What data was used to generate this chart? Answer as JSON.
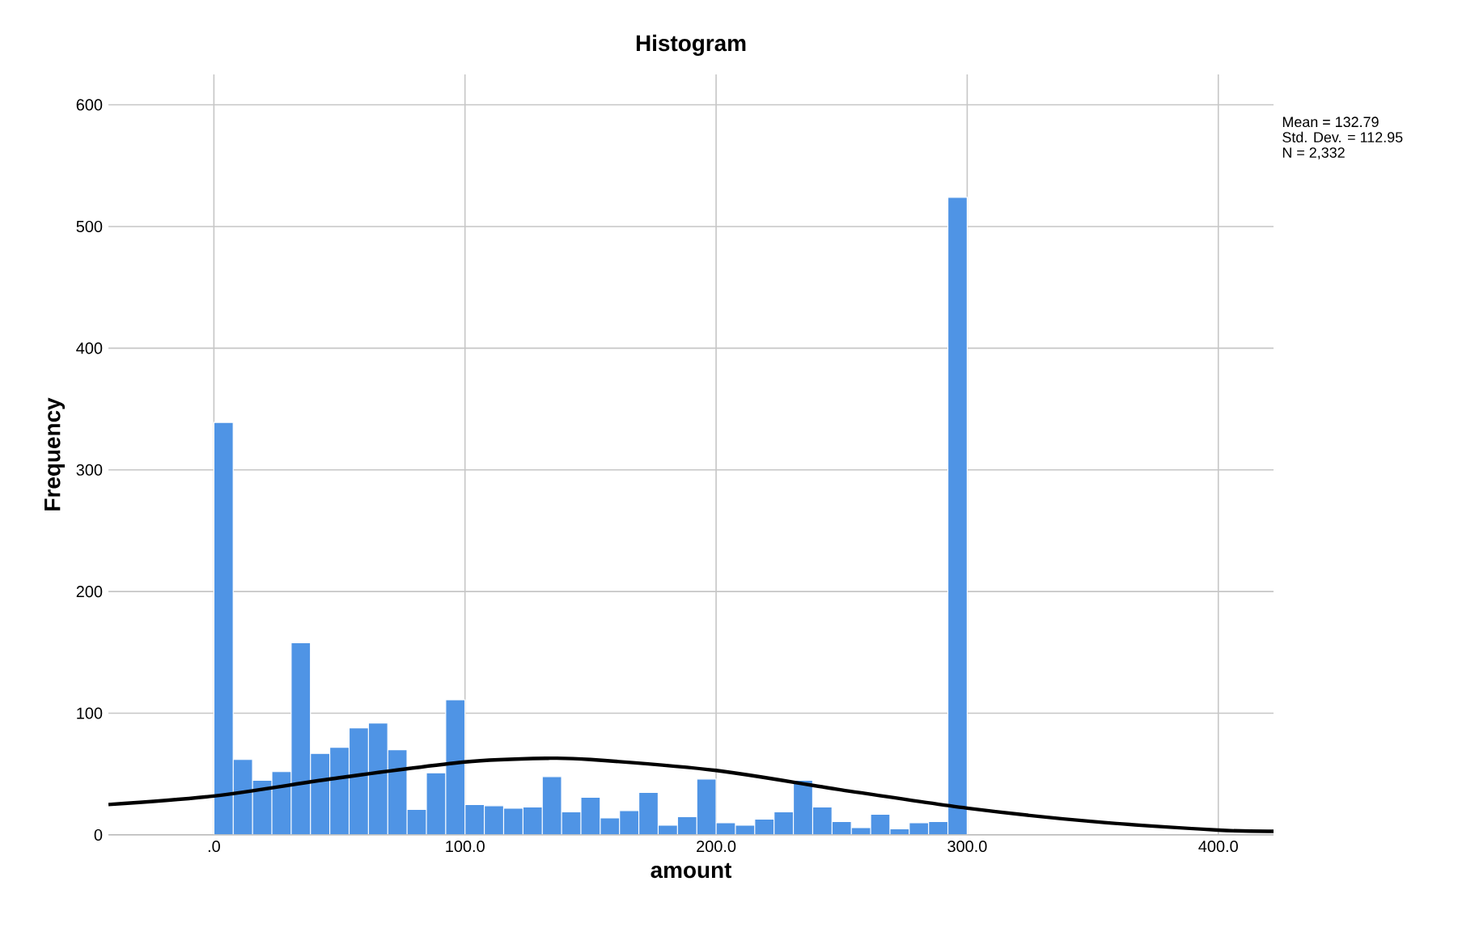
{
  "chart_data": {
    "type": "histogram",
    "title": "Histogram",
    "xlabel": "amount",
    "ylabel": "Frequency",
    "bins": [
      0,
      7.69,
      15.38,
      23.08,
      30.77,
      38.46,
      46.15,
      53.85,
      61.54,
      69.23,
      76.92,
      84.62,
      92.31,
      100,
      107.69,
      115.38,
      123.08,
      130.77,
      138.46,
      146.15,
      153.85,
      161.54,
      169.23,
      176.92,
      184.62,
      192.31,
      200,
      207.69,
      215.38,
      223.08,
      230.77,
      238.46,
      246.15,
      253.85,
      261.54,
      269.23,
      276.92,
      284.62,
      292.31,
      300
    ],
    "values": [
      339,
      62,
      45,
      52,
      158,
      67,
      72,
      88,
      92,
      70,
      21,
      51,
      111,
      25,
      24,
      22,
      23,
      48,
      19,
      31,
      14,
      20,
      35,
      8,
      15,
      46,
      10,
      8,
      13,
      19,
      45,
      23,
      11,
      6,
      17,
      5,
      10,
      11,
      524
    ],
    "color": "#4f94e5",
    "series": [
      {
        "type": "line",
        "color": "#000000",
        "x": [
          -42,
          0,
          50,
          100,
          133,
          150,
          200,
          250,
          300,
          350,
          400,
          422
        ],
        "values": [
          25,
          32,
          47,
          60,
          63,
          62,
          53,
          37,
          22,
          11,
          4,
          3
        ]
      }
    ],
    "xlim": [
      -42,
      422
    ],
    "ylim": [
      0,
      625
    ],
    "xticks": [
      {
        "value": 0,
        "label": ".0"
      },
      {
        "value": 100,
        "label": "100.0"
      },
      {
        "value": 200,
        "label": "200.0"
      },
      {
        "value": 300,
        "label": "300.0"
      },
      {
        "value": 400,
        "label": "400.0"
      }
    ],
    "yticks": [
      0,
      100,
      200,
      300,
      400,
      500,
      600
    ],
    "grid": true,
    "annotations": [
      "Mean = 132.79",
      "Std. Dev. = 112.95",
      "N = 2,332"
    ]
  }
}
